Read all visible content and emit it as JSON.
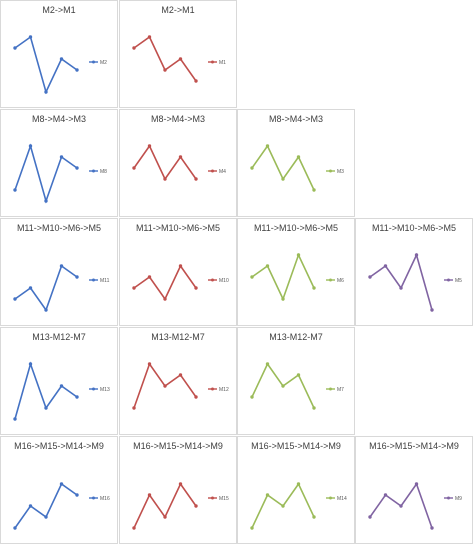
{
  "charts": [
    {
      "row": 0,
      "col": 0,
      "title": "M2->M1",
      "legend": "M2",
      "color": "#4472c4",
      "values": [
        5,
        6,
        1,
        4,
        3
      ]
    },
    {
      "row": 0,
      "col": 1,
      "title": "M2->M1",
      "legend": "M1",
      "color": "#c0504d",
      "values": [
        5,
        6,
        3,
        4,
        2
      ]
    },
    {
      "row": 1,
      "col": 0,
      "title": "M8->M4->M3",
      "legend": "M8",
      "color": "#4472c4",
      "values": [
        2,
        6,
        1,
        5,
        4
      ]
    },
    {
      "row": 1,
      "col": 1,
      "title": "M8->M4->M3",
      "legend": "M4",
      "color": "#c0504d",
      "values": [
        4,
        6,
        3,
        5,
        3
      ]
    },
    {
      "row": 1,
      "col": 2,
      "title": "M8->M4->M3",
      "legend": "M3",
      "color": "#9bbb59",
      "values": [
        4,
        6,
        3,
        5,
        2
      ]
    },
    {
      "row": 2,
      "col": 0,
      "title": "M11->M10->M6->M5",
      "legend": "M11",
      "color": "#4472c4",
      "values": [
        2,
        3,
        1,
        5,
        4
      ]
    },
    {
      "row": 2,
      "col": 1,
      "title": "M11->M10->M6->M5",
      "legend": "M10",
      "color": "#c0504d",
      "values": [
        3,
        4,
        2,
        5,
        3
      ]
    },
    {
      "row": 2,
      "col": 2,
      "title": "M11->M10->M6->M5",
      "legend": "M6",
      "color": "#9bbb59",
      "values": [
        4,
        5,
        2,
        6,
        3
      ]
    },
    {
      "row": 2,
      "col": 3,
      "title": "M11->M10->M6->M5",
      "legend": "M5",
      "color": "#8064a2",
      "values": [
        4,
        5,
        3,
        6,
        1
      ]
    },
    {
      "row": 3,
      "col": 0,
      "title": "M13-M12-M7",
      "legend": "M13",
      "color": "#4472c4",
      "values": [
        1,
        6,
        2,
        4,
        3
      ]
    },
    {
      "row": 3,
      "col": 1,
      "title": "M13-M12-M7",
      "legend": "M12",
      "color": "#c0504d",
      "values": [
        2,
        6,
        4,
        5,
        3
      ]
    },
    {
      "row": 3,
      "col": 2,
      "title": "M13-M12-M7",
      "legend": "M7",
      "color": "#9bbb59",
      "values": [
        3,
        6,
        4,
        5,
        2
      ]
    },
    {
      "row": 4,
      "col": 0,
      "title": "M16->M15->M14->M9",
      "legend": "M16",
      "color": "#4472c4",
      "values": [
        1,
        3,
        2,
        5,
        4
      ]
    },
    {
      "row": 4,
      "col": 1,
      "title": "M16->M15->M14->M9",
      "legend": "M15",
      "color": "#c0504d",
      "values": [
        1,
        4,
        2,
        5,
        3
      ]
    },
    {
      "row": 4,
      "col": 2,
      "title": "M16->M15->M14->M9",
      "legend": "M14",
      "color": "#9bbb59",
      "values": [
        1,
        4,
        3,
        5,
        2
      ]
    },
    {
      "row": 4,
      "col": 3,
      "title": "M16->M15->M14->M9",
      "legend": "M9",
      "color": "#8064a2",
      "values": [
        2,
        4,
        3,
        5,
        1
      ]
    }
  ],
  "chart_data": [
    {
      "type": "line",
      "title": "M2->M1",
      "series": [
        {
          "name": "M2",
          "values": [
            5,
            6,
            1,
            4,
            3
          ]
        }
      ]
    },
    {
      "type": "line",
      "title": "M2->M1",
      "series": [
        {
          "name": "M1",
          "values": [
            5,
            6,
            3,
            4,
            2
          ]
        }
      ]
    },
    {
      "type": "line",
      "title": "M8->M4->M3",
      "series": [
        {
          "name": "M8",
          "values": [
            2,
            6,
            1,
            5,
            4
          ]
        }
      ]
    },
    {
      "type": "line",
      "title": "M8->M4->M3",
      "series": [
        {
          "name": "M4",
          "values": [
            4,
            6,
            3,
            5,
            3
          ]
        }
      ]
    },
    {
      "type": "line",
      "title": "M8->M4->M3",
      "series": [
        {
          "name": "M3",
          "values": [
            4,
            6,
            3,
            5,
            2
          ]
        }
      ]
    },
    {
      "type": "line",
      "title": "M11->M10->M6->M5",
      "series": [
        {
          "name": "M11",
          "values": [
            2,
            3,
            1,
            5,
            4
          ]
        }
      ]
    },
    {
      "type": "line",
      "title": "M11->M10->M6->M5",
      "series": [
        {
          "name": "M10",
          "values": [
            3,
            4,
            2,
            5,
            3
          ]
        }
      ]
    },
    {
      "type": "line",
      "title": "M11->M10->M6->M5",
      "series": [
        {
          "name": "M6",
          "values": [
            4,
            5,
            2,
            6,
            3
          ]
        }
      ]
    },
    {
      "type": "line",
      "title": "M11->M10->M6->M5",
      "series": [
        {
          "name": "M5",
          "values": [
            4,
            5,
            3,
            6,
            1
          ]
        }
      ]
    },
    {
      "type": "line",
      "title": "M13-M12-M7",
      "series": [
        {
          "name": "M13",
          "values": [
            1,
            6,
            2,
            4,
            3
          ]
        }
      ]
    },
    {
      "type": "line",
      "title": "M13-M12-M7",
      "series": [
        {
          "name": "M12",
          "values": [
            2,
            6,
            4,
            5,
            3
          ]
        }
      ]
    },
    {
      "type": "line",
      "title": "M13-M12-M7",
      "series": [
        {
          "name": "M7",
          "values": [
            3,
            6,
            4,
            5,
            2
          ]
        }
      ]
    },
    {
      "type": "line",
      "title": "M16->M15->M14->M9",
      "series": [
        {
          "name": "M16",
          "values": [
            1,
            3,
            2,
            5,
            4
          ]
        }
      ]
    },
    {
      "type": "line",
      "title": "M16->M15->M14->M9",
      "series": [
        {
          "name": "M15",
          "values": [
            1,
            4,
            2,
            5,
            3
          ]
        }
      ]
    },
    {
      "type": "line",
      "title": "M16->M15->M14->M9",
      "series": [
        {
          "name": "M14",
          "values": [
            1,
            4,
            3,
            5,
            2
          ]
        }
      ]
    },
    {
      "type": "line",
      "title": "M16->M15->M14->M9",
      "series": [
        {
          "name": "M9",
          "values": [
            2,
            4,
            3,
            5,
            1
          ]
        }
      ]
    }
  ]
}
